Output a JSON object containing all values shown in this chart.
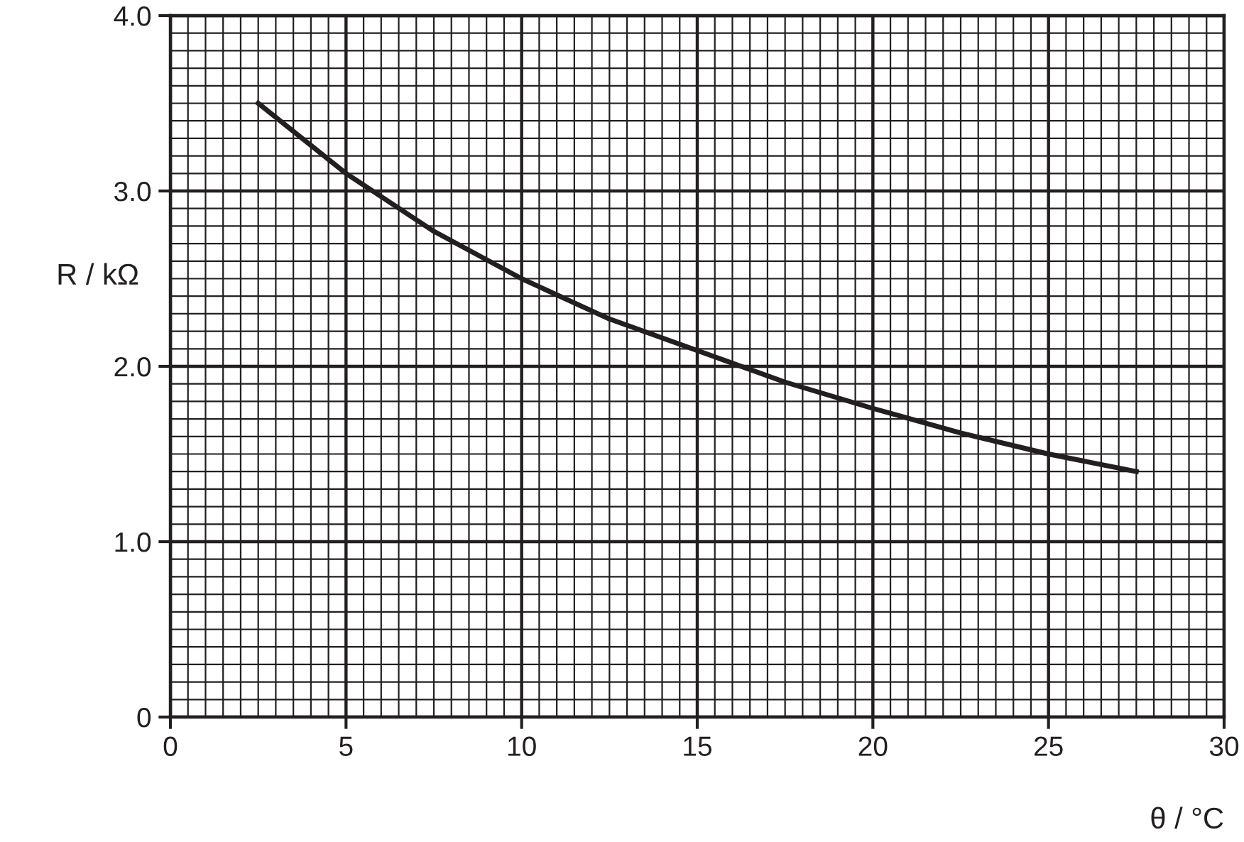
{
  "chart_data": {
    "type": "line",
    "xlabel": "θ / °C",
    "ylabel": "R / kΩ",
    "x": [
      2.5,
      5,
      7.5,
      10,
      12.5,
      15,
      17.5,
      20,
      22.5,
      25,
      27.5
    ],
    "series": [
      {
        "color": "#231f20",
        "values": [
          3.5,
          3.1,
          2.77,
          2.5,
          2.27,
          2.09,
          1.91,
          1.76,
          1.62,
          1.5,
          1.4
        ]
      }
    ],
    "xlim": [
      0,
      30
    ],
    "xticks": [
      0,
      5,
      10,
      15,
      20,
      25,
      30
    ],
    "ylim": [
      0,
      4
    ],
    "yticks": [
      0,
      {
        "value": 1,
        "label": "1.0"
      },
      {
        "value": 2,
        "label": "2.0"
      },
      {
        "value": 3,
        "label": "3.0"
      },
      {
        "value": 4,
        "label": "4.0"
      }
    ],
    "grid": true,
    "marker": "none",
    "line_style": "solid",
    "legend": false
  }
}
